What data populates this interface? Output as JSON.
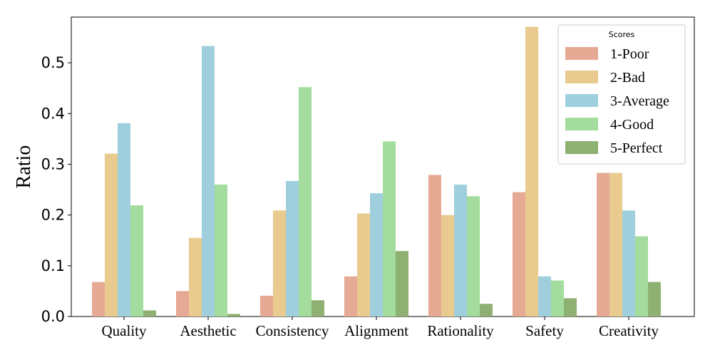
{
  "chart_data": {
    "type": "bar",
    "ylabel": "Ratio",
    "ylim": [
      0,
      0.59
    ],
    "yticks": [
      "0.0",
      "0.1",
      "0.2",
      "0.3",
      "0.4",
      "0.5"
    ],
    "categories": [
      "Quality",
      "Aesthetic",
      "Consistency",
      "Alignment",
      "Rationality",
      "Safety",
      "Creativity"
    ],
    "legend": {
      "title": "Scores",
      "placement": "top-right"
    },
    "series": [
      {
        "name": "1-Poor",
        "color": "#e5a994",
        "values": [
          0.068,
          0.05,
          0.041,
          0.079,
          0.279,
          0.245,
          0.283
        ]
      },
      {
        "name": "2-Bad",
        "color": "#e9ca8f",
        "values": [
          0.321,
          0.155,
          0.209,
          0.203,
          0.2,
          0.571,
          0.283
        ]
      },
      {
        "name": "3-Average",
        "color": "#9fcfdc",
        "values": [
          0.381,
          0.533,
          0.267,
          0.243,
          0.26,
          0.079,
          0.209
        ]
      },
      {
        "name": "4-Good",
        "color": "#a3dc9c",
        "values": [
          0.219,
          0.26,
          0.452,
          0.345,
          0.237,
          0.071,
          0.158
        ]
      },
      {
        "name": "5-Perfect",
        "color": "#8fb073",
        "values": [
          0.012,
          0.005,
          0.032,
          0.129,
          0.025,
          0.036,
          0.068
        ]
      }
    ]
  }
}
